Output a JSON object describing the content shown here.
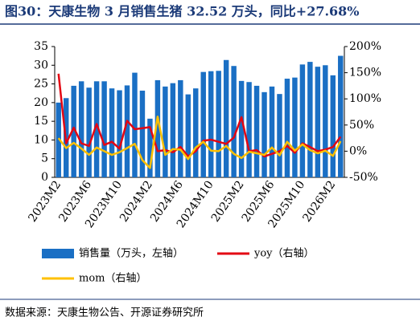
{
  "title": "图30：天康生物 3 月销售生猪 32.52 万头，同比+27.68%",
  "source": "数据来源：天康生物公告、开源证券研究所",
  "chart_data": {
    "type": "bar",
    "categories": [
      "2023M2",
      null,
      null,
      null,
      "2023M6",
      null,
      null,
      null,
      "2023M10",
      null,
      null,
      null,
      "2024M2",
      null,
      null,
      null,
      "2024M6",
      null,
      null,
      null,
      "2024M10",
      null,
      null,
      null,
      "2025M2",
      null,
      null,
      null,
      "2025M6",
      null,
      null,
      null,
      "2025M10",
      null,
      null,
      null,
      "2026M2",
      null
    ],
    "series": [
      {
        "name": "销售量（万头，左轴）",
        "type": "bar",
        "color": "#1a6fc4",
        "values": [
          20.0,
          21.2,
          24.5,
          25.7,
          24.0,
          25.7,
          25.7,
          23.8,
          23.3,
          24.6,
          28.0,
          23.2,
          15.7,
          26.0,
          24.3,
          25.2,
          26.0,
          22.2,
          23.8,
          28.2,
          28.4,
          28.5,
          31.4,
          29.8,
          25.8,
          25.5,
          24.5,
          22.8,
          24.3,
          22.3,
          26.4,
          26.7,
          30.2,
          30.9,
          29.6,
          30.0,
          27.3,
          32.52
        ]
      },
      {
        "name": "yoy（右轴）",
        "type": "line",
        "axis": "y2",
        "color": "#e30613",
        "values": [
          148,
          15,
          45,
          15,
          10,
          52,
          12,
          18,
          5,
          58,
          42,
          44,
          46,
          0,
          2,
          -2,
          8,
          -10,
          0,
          20,
          22,
          18,
          14,
          26,
          65,
          0,
          2,
          -10,
          -5,
          0,
          10,
          -3,
          15,
          8,
          0,
          3,
          8,
          27.68
        ]
      },
      {
        "name": "mom（右轴）",
        "type": "line",
        "axis": "y2",
        "color": "#ffc000",
        "values": [
          25,
          6,
          16,
          5,
          -7,
          7,
          0,
          -7,
          -2,
          6,
          14,
          -17,
          -32,
          66,
          -7,
          4,
          3,
          -15,
          7,
          18,
          1,
          0,
          10,
          -5,
          -13,
          -1,
          -4,
          -7,
          7,
          -8,
          18,
          1,
          13,
          2,
          -4,
          1,
          -9,
          19
        ]
      }
    ],
    "ylim": [
      0,
      35
    ],
    "yticks": [
      0,
      5,
      10,
      15,
      20,
      25,
      30,
      35
    ],
    "y2lim": [
      -50,
      200
    ],
    "y2ticks": [
      {
        "value": -50,
        "label": "-50%"
      },
      {
        "value": 0,
        "label": "0%"
      },
      {
        "value": 50,
        "label": "50%"
      },
      {
        "value": 100,
        "label": "100%"
      },
      {
        "value": 150,
        "label": "150%"
      },
      {
        "value": 200,
        "label": "200%"
      }
    ]
  }
}
